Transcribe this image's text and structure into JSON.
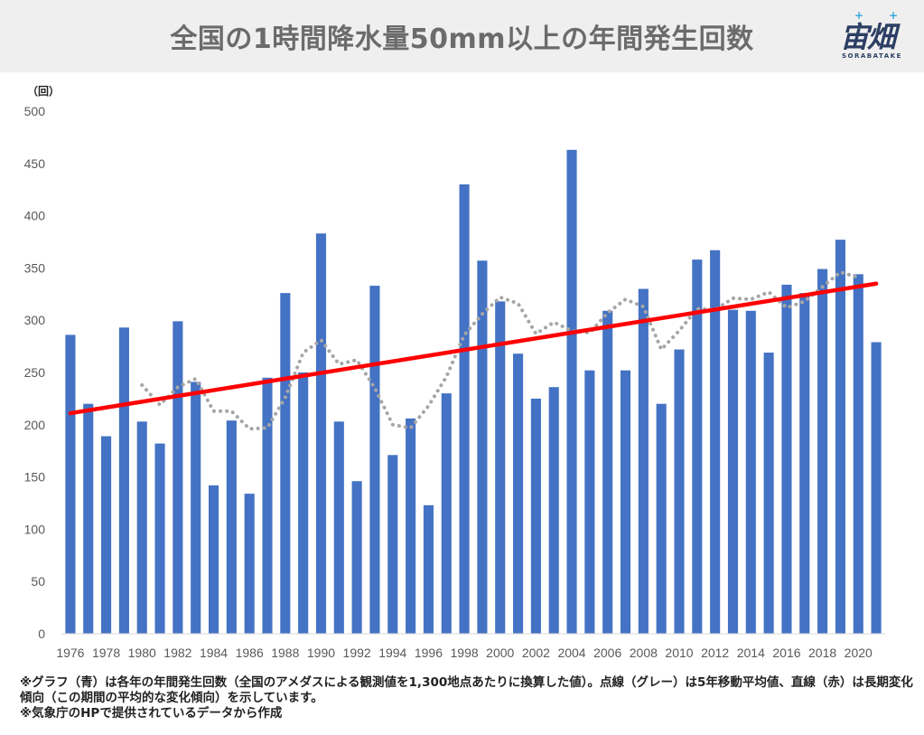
{
  "header": {
    "title": "全国の1時間降水量50mm以上の年間発生回数",
    "logo_main": "宙畑",
    "logo_sub": "SORABATAKE"
  },
  "colors": {
    "bar": "#4472c4",
    "trend": "#ff0000",
    "moving_avg": "#a6a6a6",
    "title_bg": "#efefef"
  },
  "chart_data": {
    "type": "bar",
    "ylabel": "（回）",
    "ylim": [
      0,
      500
    ],
    "yticks": [
      0,
      50,
      100,
      150,
      200,
      250,
      300,
      350,
      400,
      450,
      500
    ],
    "xtick_labels": [
      "1976",
      "1978",
      "1980",
      "1982",
      "1984",
      "1986",
      "1988",
      "1990",
      "1992",
      "1994",
      "1996",
      "1998",
      "2000",
      "2002",
      "2004",
      "2006",
      "2008",
      "2010",
      "2012",
      "2014",
      "2016",
      "2018",
      "2020"
    ],
    "categories": [
      1976,
      1977,
      1978,
      1979,
      1980,
      1981,
      1982,
      1983,
      1984,
      1985,
      1986,
      1987,
      1988,
      1989,
      1990,
      1991,
      1992,
      1993,
      1994,
      1995,
      1996,
      1997,
      1998,
      1999,
      2000,
      2001,
      2002,
      2003,
      2004,
      2005,
      2006,
      2007,
      2008,
      2009,
      2010,
      2011,
      2012,
      2013,
      2014,
      2015,
      2016,
      2017,
      2018,
      2019,
      2020,
      2021
    ],
    "values": [
      286,
      220,
      189,
      293,
      203,
      182,
      299,
      241,
      142,
      204,
      134,
      245,
      326,
      250,
      383,
      203,
      146,
      333,
      171,
      206,
      123,
      230,
      430,
      357,
      318,
      268,
      225,
      236,
      463,
      252,
      309,
      252,
      330,
      220,
      272,
      358,
      367,
      310,
      309,
      269,
      334,
      326,
      349,
      377,
      344,
      279
    ],
    "moving_average": [
      {
        "year": 1980,
        "value": 238
      },
      {
        "year": 1981,
        "value": 219
      },
      {
        "year": 1982,
        "value": 236
      },
      {
        "year": 1983,
        "value": 244
      },
      {
        "year": 1984,
        "value": 213
      },
      {
        "year": 1985,
        "value": 213
      },
      {
        "year": 1986,
        "value": 196
      },
      {
        "year": 1987,
        "value": 197
      },
      {
        "year": 1988,
        "value": 226
      },
      {
        "year": 1989,
        "value": 269
      },
      {
        "year": 1990,
        "value": 281
      },
      {
        "year": 1991,
        "value": 258
      },
      {
        "year": 1992,
        "value": 262
      },
      {
        "year": 1993,
        "value": 235
      },
      {
        "year": 1994,
        "value": 200
      },
      {
        "year": 1995,
        "value": 197
      },
      {
        "year": 1996,
        "value": 218
      },
      {
        "year": 1997,
        "value": 246
      },
      {
        "year": 1998,
        "value": 286
      },
      {
        "year": 1999,
        "value": 306
      },
      {
        "year": 2000,
        "value": 322
      },
      {
        "year": 2001,
        "value": 316
      },
      {
        "year": 2002,
        "value": 287
      },
      {
        "year": 2003,
        "value": 298
      },
      {
        "year": 2004,
        "value": 290
      },
      {
        "year": 2005,
        "value": 288
      },
      {
        "year": 2006,
        "value": 307
      },
      {
        "year": 2007,
        "value": 320
      },
      {
        "year": 2008,
        "value": 313
      },
      {
        "year": 2009,
        "value": 272
      },
      {
        "year": 2010,
        "value": 290
      },
      {
        "year": 2011,
        "value": 311
      },
      {
        "year": 2012,
        "value": 310
      },
      {
        "year": 2013,
        "value": 321
      },
      {
        "year": 2014,
        "value": 320
      },
      {
        "year": 2015,
        "value": 327
      },
      {
        "year": 2016,
        "value": 312
      },
      {
        "year": 2017,
        "value": 318
      },
      {
        "year": 2018,
        "value": 332
      },
      {
        "year": 2019,
        "value": 346
      },
      {
        "year": 2020,
        "value": 341
      }
    ],
    "trend": {
      "start": {
        "year": 1976,
        "value": 211
      },
      "end": {
        "year": 2021,
        "value": 335
      }
    },
    "grid": false
  },
  "notes": [
    "※グラフ（青）は各年の年間発生回数（全国のアメダスによる観測値を1,300地点あたりに換算した値）。点線（グレー）は5年移動平均値、直線（赤）は長期変化傾向（この期間の平均的な変化傾向）を示しています。",
    "※気象庁のHPで提供されているデータから作成"
  ]
}
